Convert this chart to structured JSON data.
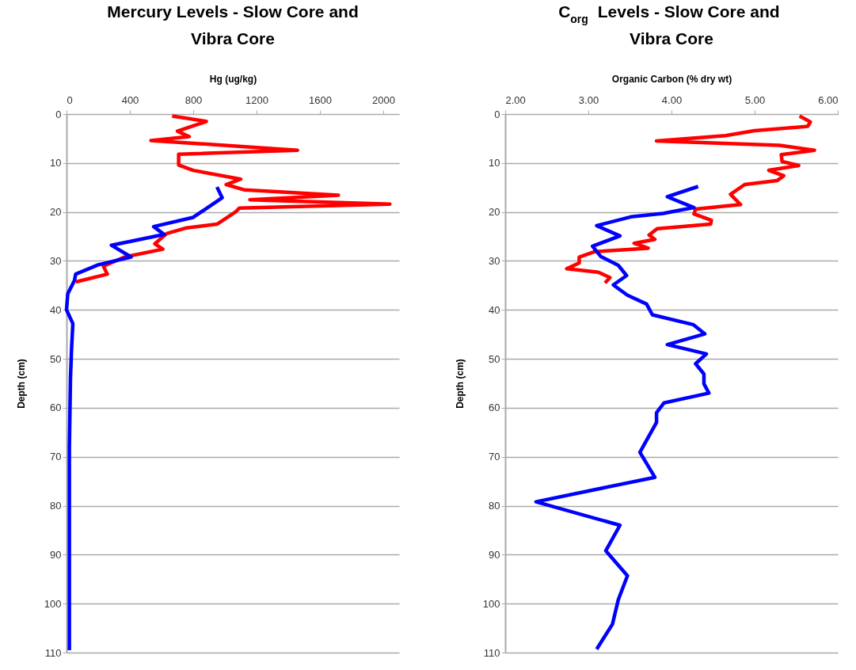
{
  "chart_data": [
    {
      "type": "line",
      "title": "Mercury Levels - Slow Core and Vibra Core",
      "xlabel": "Hg (ug/kg)",
      "ylabel": "Depth (cm)",
      "xlim": [
        0,
        2100
      ],
      "xticks": [
        0,
        400,
        800,
        1200,
        1600,
        2000
      ],
      "ylim": [
        110,
        0
      ],
      "yticks": [
        0,
        10,
        20,
        30,
        40,
        50,
        60,
        70,
        80,
        90,
        100,
        110
      ],
      "grid": "y",
      "line_style": "solid",
      "series": [
        {
          "color": "#ff0000",
          "x": [
            667,
            883,
            700,
            775,
            533,
            1458,
            708,
            708,
            800,
            1100,
            1008,
            1125,
            1717,
            1158,
            2042,
            1092,
            1067,
            950,
            750,
            633,
            558,
            608,
            367,
            233,
            258,
            58
          ],
          "values": [
            0.4,
            1.5,
            3.5,
            4.6,
            5.4,
            7.4,
            8.2,
            10.4,
            11.5,
            13.3,
            14.4,
            15.5,
            16.6,
            17.5,
            18.4,
            19.2,
            20,
            22.5,
            23.3,
            24.4,
            26.5,
            27.6,
            29.2,
            31.1,
            32.7,
            34.3
          ]
        },
        {
          "color": "#0000ff",
          "x": [
            950,
            983,
            800,
            550,
            617,
            283,
            408,
            200,
            58,
            50,
            8,
            0,
            40,
            32,
            25,
            18,
            18
          ],
          "values": [
            14.9,
            17.1,
            21.1,
            23,
            24.6,
            26.8,
            29.2,
            30.8,
            32.7,
            34,
            36.7,
            40,
            42.8,
            47.9,
            53.9,
            68.2,
            109.5
          ]
        }
      ]
    },
    {
      "type": "line",
      "title": "C$_{org}$ Levels - Slow Core and Vibra Core",
      "xlabel": "Organic Carbon (% dry wt)",
      "ylabel": "Depth (cm)",
      "xlim": [
        2,
        6
      ],
      "xticks": [
        {
          "value": 2,
          "label": "2.00"
        },
        {
          "value": 3,
          "label": "3.00"
        },
        {
          "value": 4,
          "label": "4.00"
        },
        {
          "value": 5,
          "label": "5.00"
        },
        {
          "value": 6,
          "label": "6.00"
        }
      ],
      "ylim": [
        110,
        0
      ],
      "yticks": [
        0,
        10,
        20,
        30,
        40,
        50,
        60,
        70,
        80,
        90,
        100,
        110
      ],
      "grid": "y",
      "line_style": "solid",
      "series": [
        {
          "color": "#ff0000",
          "x": [
            5.54,
            5.67,
            5.64,
            5.0,
            4.65,
            3.82,
            5.3,
            5.72,
            5.32,
            5.33,
            5.53,
            5.17,
            5.35,
            5.27,
            4.88,
            4.71,
            4.83,
            4.29,
            4.27,
            4.48,
            4.47,
            3.83,
            3.73,
            3.8,
            3.55,
            3.72,
            3.08,
            2.89,
            2.89,
            2.74,
            3.12,
            3.26,
            3.2
          ],
          "values": [
            0.4,
            1.6,
            2.5,
            3.4,
            4.4,
            5.5,
            6.4,
            7.4,
            8.3,
            9.7,
            10.5,
            11.5,
            12.6,
            13.6,
            14.4,
            16.4,
            18.5,
            19.4,
            20.4,
            21.7,
            22.5,
            23.4,
            24.7,
            25.6,
            26.4,
            27.4,
            28.1,
            29.2,
            30.4,
            31.6,
            32.3,
            33.4,
            34.5
          ]
        },
        {
          "color": "#0000ff",
          "x": [
            4.32,
            3.95,
            4.27,
            3.9,
            3.51,
            3.1,
            3.38,
            3.05,
            3.15,
            3.36,
            3.46,
            3.3,
            3.47,
            3.7,
            3.77,
            4.26,
            4.4,
            3.95,
            4.42,
            4.29,
            4.39,
            4.39,
            4.45,
            3.91,
            3.82,
            3.82,
            3.62,
            3.8,
            2.37,
            3.38,
            3.21,
            3.47,
            3.36,
            3.29,
            3.1
          ],
          "values": [
            14.8,
            16.9,
            19.1,
            20.3,
            21,
            22.8,
            24.9,
            27,
            29.1,
            30.9,
            33,
            34.9,
            37,
            38.8,
            41,
            43,
            44.9,
            47.1,
            49,
            51,
            53.1,
            55.1,
            57,
            59,
            61,
            63,
            69.1,
            74.2,
            79.2,
            84,
            89.2,
            94.3,
            99.2,
            104.2,
            109.3
          ]
        }
      ]
    }
  ]
}
